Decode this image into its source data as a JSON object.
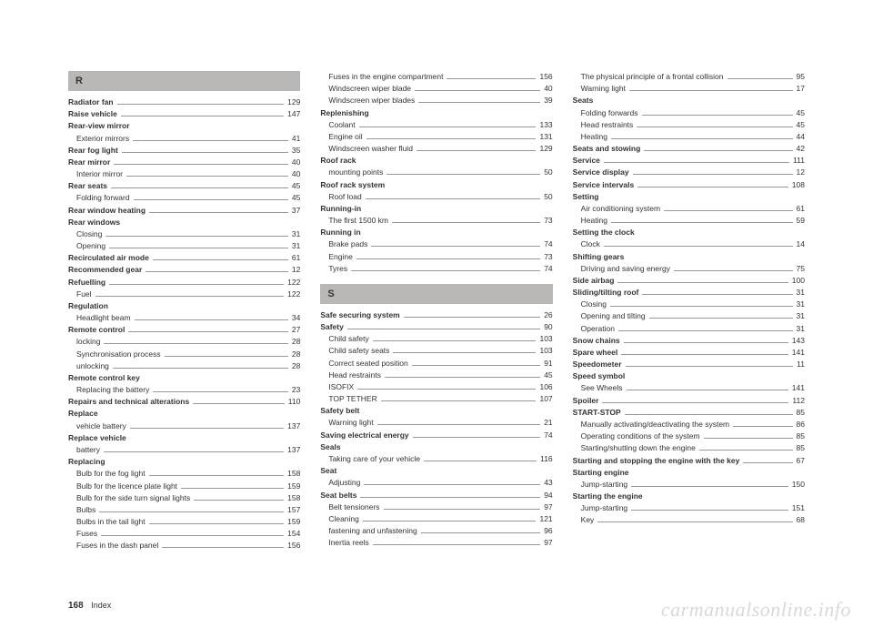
{
  "columns": [
    {
      "sections": [
        {
          "letter": "R",
          "entries": [
            {
              "label": "Radiator fan",
              "page": "129",
              "bold": true
            },
            {
              "label": "Raise vehicle",
              "page": "147",
              "bold": true
            },
            {
              "label": "Rear-view mirror",
              "bold": true,
              "nopage": true
            },
            {
              "label": "Exterior mirrors",
              "page": "41",
              "sub": true
            },
            {
              "label": "Rear fog light",
              "page": "35",
              "bold": true
            },
            {
              "label": "Rear mirror",
              "page": "40",
              "bold": true
            },
            {
              "label": "Interior mirror",
              "page": "40",
              "sub": true
            },
            {
              "label": "Rear seats",
              "page": "45",
              "bold": true
            },
            {
              "label": "Folding forward",
              "page": "45",
              "sub": true
            },
            {
              "label": "Rear window heating",
              "page": "37",
              "bold": true
            },
            {
              "label": "Rear windows",
              "bold": true,
              "nopage": true
            },
            {
              "label": "Closing",
              "page": "31",
              "sub": true
            },
            {
              "label": "Opening",
              "page": "31",
              "sub": true
            },
            {
              "label": "Recirculated air mode",
              "page": "61",
              "bold": true
            },
            {
              "label": "Recommended gear",
              "page": "12",
              "bold": true
            },
            {
              "label": "Refuelling",
              "page": "122",
              "bold": true
            },
            {
              "label": "Fuel",
              "page": "122",
              "sub": true
            },
            {
              "label": "Regulation",
              "bold": true,
              "nopage": true
            },
            {
              "label": "Headlight beam",
              "page": "34",
              "sub": true
            },
            {
              "label": "Remote control",
              "page": "27",
              "bold": true
            },
            {
              "label": "locking",
              "page": "28",
              "sub": true
            },
            {
              "label": "Synchronisation process",
              "page": "28",
              "sub": true
            },
            {
              "label": "unlocking",
              "page": "28",
              "sub": true
            },
            {
              "label": "Remote control key",
              "bold": true,
              "nopage": true
            },
            {
              "label": "Replacing the battery",
              "page": "23",
              "sub": true
            },
            {
              "label": "Repairs and technical alterations",
              "page": "110",
              "bold": true
            },
            {
              "label": "Replace",
              "bold": true,
              "nopage": true
            },
            {
              "label": "vehicle battery",
              "page": "137",
              "sub": true
            },
            {
              "label": "Replace vehicle",
              "bold": true,
              "nopage": true
            },
            {
              "label": "battery",
              "page": "137",
              "sub": true
            },
            {
              "label": "Replacing",
              "bold": true,
              "nopage": true
            },
            {
              "label": "Bulb for the fog light",
              "page": "158",
              "sub": true
            },
            {
              "label": "Bulb for the licence plate light",
              "page": "159",
              "sub": true
            },
            {
              "label": "Bulb for the side turn signal lights",
              "page": "158",
              "sub": true
            },
            {
              "label": "Bulbs",
              "page": "157",
              "sub": true
            },
            {
              "label": "Bulbs in the tail light",
              "page": "159",
              "sub": true
            },
            {
              "label": "Fuses",
              "page": "154",
              "sub": true
            },
            {
              "label": "Fuses in the dash panel",
              "page": "156",
              "sub": true
            }
          ]
        }
      ]
    },
    {
      "sections": [
        {
          "entries": [
            {
              "label": "Fuses in the engine compartment",
              "page": "156",
              "sub": true
            },
            {
              "label": "Windscreen wiper blade",
              "page": "40",
              "sub": true
            },
            {
              "label": "Windscreen wiper blades",
              "page": "39",
              "sub": true
            },
            {
              "label": "Replenishing",
              "bold": true,
              "nopage": true
            },
            {
              "label": "Coolant",
              "page": "133",
              "sub": true
            },
            {
              "label": "Engine oil",
              "page": "131",
              "sub": true
            },
            {
              "label": "Windscreen washer fluid",
              "page": "129",
              "sub": true
            },
            {
              "label": "Roof rack",
              "bold": true,
              "nopage": true
            },
            {
              "label": "mounting points",
              "page": "50",
              "sub": true
            },
            {
              "label": "Roof rack system",
              "bold": true,
              "nopage": true
            },
            {
              "label": "Roof load",
              "page": "50",
              "sub": true
            },
            {
              "label": "Running-in",
              "bold": true,
              "nopage": true
            },
            {
              "label": "The first 1500 km",
              "page": "73",
              "sub": true
            },
            {
              "label": "Running in",
              "bold": true,
              "nopage": true
            },
            {
              "label": "Brake pads",
              "page": "74",
              "sub": true
            },
            {
              "label": "Engine",
              "page": "73",
              "sub": true
            },
            {
              "label": "Tyres",
              "page": "74",
              "sub": true
            }
          ]
        },
        {
          "letter": "S",
          "gap": true,
          "entries": [
            {
              "label": "Safe securing system",
              "page": "26",
              "bold": true
            },
            {
              "label": "Safety",
              "page": "90",
              "bold": true
            },
            {
              "label": "Child safety",
              "page": "103",
              "sub": true
            },
            {
              "label": "Child safety seats",
              "page": "103",
              "sub": true
            },
            {
              "label": "Correct seated position",
              "page": "91",
              "sub": true
            },
            {
              "label": "Head restraints",
              "page": "45",
              "sub": true
            },
            {
              "label": "ISOFIX",
              "page": "106",
              "sub": true
            },
            {
              "label": "TOP TETHER",
              "page": "107",
              "sub": true
            },
            {
              "label": "Safety belt",
              "bold": true,
              "nopage": true
            },
            {
              "label": "Warning light",
              "page": "21",
              "sub": true
            },
            {
              "label": "Saving electrical energy",
              "page": "74",
              "bold": true
            },
            {
              "label": "Seals",
              "bold": true,
              "nopage": true
            },
            {
              "label": "Taking care of your vehicle",
              "page": "116",
              "sub": true
            },
            {
              "label": "Seat",
              "bold": true,
              "nopage": true
            },
            {
              "label": "Adjusting",
              "page": "43",
              "sub": true
            },
            {
              "label": "Seat belts",
              "page": "94",
              "bold": true
            },
            {
              "label": "Belt tensioners",
              "page": "97",
              "sub": true
            },
            {
              "label": "Cleaning",
              "page": "121",
              "sub": true
            },
            {
              "label": "fastening and unfastening",
              "page": "96",
              "sub": true
            },
            {
              "label": "Inertia reels",
              "page": "97",
              "sub": true
            }
          ]
        }
      ]
    },
    {
      "sections": [
        {
          "entries": [
            {
              "label": "The physical principle of a frontal collision",
              "page": "95",
              "sub": true
            },
            {
              "label": "Warning light",
              "page": "17",
              "sub": true
            },
            {
              "label": "Seats",
              "bold": true,
              "nopage": true
            },
            {
              "label": "Folding forwards",
              "page": "45",
              "sub": true
            },
            {
              "label": "Head restraints",
              "page": "45",
              "sub": true
            },
            {
              "label": "Heating",
              "page": "44",
              "sub": true
            },
            {
              "label": "Seats and stowing",
              "page": "42",
              "bold": true
            },
            {
              "label": "Service",
              "page": "111",
              "bold": true
            },
            {
              "label": "Service display",
              "page": "12",
              "bold": true
            },
            {
              "label": "Service intervals",
              "page": "108",
              "bold": true
            },
            {
              "label": "Setting",
              "bold": true,
              "nopage": true
            },
            {
              "label": "Air conditioning system",
              "page": "61",
              "sub": true
            },
            {
              "label": "Heating",
              "page": "59",
              "sub": true
            },
            {
              "label": "Setting the clock",
              "bold": true,
              "nopage": true
            },
            {
              "label": "Clock",
              "page": "14",
              "sub": true
            },
            {
              "label": "Shifting gears",
              "bold": true,
              "nopage": true
            },
            {
              "label": "Driving and saving energy",
              "page": "75",
              "sub": true
            },
            {
              "label": "Side airbag",
              "page": "100",
              "bold": true
            },
            {
              "label": "Sliding/tilting roof",
              "page": "31",
              "bold": true
            },
            {
              "label": "Closing",
              "page": "31",
              "sub": true
            },
            {
              "label": "Opening and tilting",
              "page": "31",
              "sub": true
            },
            {
              "label": "Operation",
              "page": "31",
              "sub": true
            },
            {
              "label": "Snow chains",
              "page": "143",
              "bold": true
            },
            {
              "label": "Spare wheel",
              "page": "141",
              "bold": true
            },
            {
              "label": "Speedometer",
              "page": "11",
              "bold": true
            },
            {
              "label": "Speed symbol",
              "bold": true,
              "nopage": true
            },
            {
              "label": "See Wheels",
              "page": "141",
              "sub": true
            },
            {
              "label": "Spoiler",
              "page": "112",
              "bold": true
            },
            {
              "label": "START-STOP",
              "page": "85",
              "bold": true
            },
            {
              "label": "Manually activating/deactivating the system",
              "page": "86",
              "sub": true
            },
            {
              "label": "Operating conditions of the system",
              "page": "85",
              "sub": true
            },
            {
              "label": "Starting/shutting down the engine",
              "page": "85",
              "sub": true
            },
            {
              "label": "Starting and stopping the engine with the key",
              "page": "67",
              "bold": true
            },
            {
              "label": "Starting engine",
              "bold": true,
              "nopage": true
            },
            {
              "label": "Jump-starting",
              "page": "150",
              "sub": true
            },
            {
              "label": "Starting the engine",
              "bold": true,
              "nopage": true
            },
            {
              "label": "Jump-starting",
              "page": "151",
              "sub": true
            },
            {
              "label": "Key",
              "page": "68",
              "sub": true
            }
          ]
        }
      ]
    }
  ],
  "footer": {
    "pagenum": "168",
    "label": "Index"
  },
  "watermark": "carmanualsonline.info"
}
